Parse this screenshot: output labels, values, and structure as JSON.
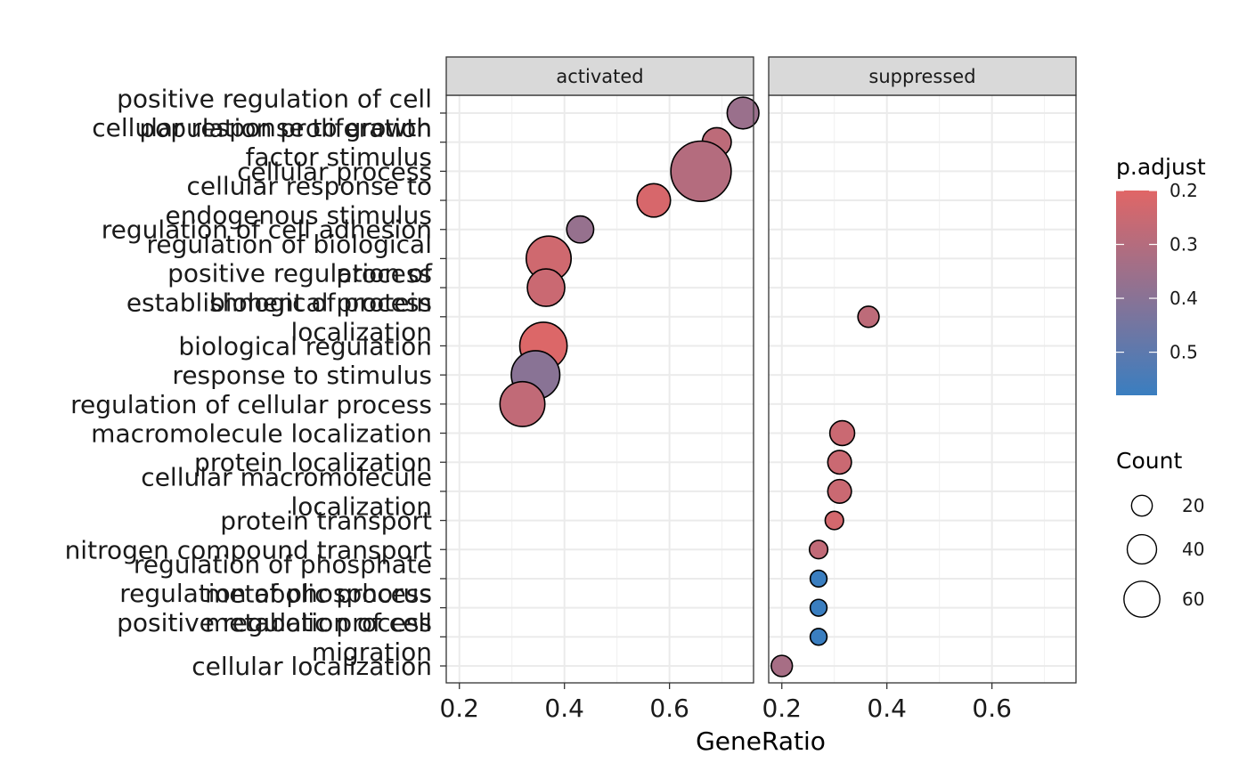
{
  "chart_data": {
    "type": "scatter",
    "xlabel": "GeneRatio",
    "ylabel": "",
    "xlim": [
      0.175,
      0.76
    ],
    "x_ticks": [
      0.2,
      0.4,
      0.6
    ],
    "x_tick_labels": [
      "0.2",
      "0.4",
      "0.6"
    ],
    "grid": true,
    "panels": [
      "activated",
      "suppressed"
    ],
    "categories": [
      "positive regulation of cell population proliferation",
      "cellular response to growth factor stimulus",
      "cellular process",
      "cellular response to endogenous stimulus",
      "regulation of cell adhesion",
      "regulation of biological process",
      "positive regulation of biological process",
      "establishment of protein localization",
      "biological regulation",
      "response to stimulus",
      "regulation of cellular process",
      "macromolecule localization",
      "protein localization",
      "cellular macromolecule localization",
      "protein transport",
      "nitrogen compound transport",
      "regulation of phosphate metabolic process",
      "regulation of phosphorus metabolic process",
      "positive regulation of cell migration",
      "cellular localization"
    ],
    "category_labels": [
      [
        "positive regulation of cell",
        "population proliferation"
      ],
      [
        "cellular response to growth",
        "factor stimulus"
      ],
      [
        "cellular process"
      ],
      [
        "cellular response to",
        "endogenous stimulus"
      ],
      [
        "regulation of cell adhesion"
      ],
      [
        "regulation of biological",
        "process"
      ],
      [
        "positive regulation of",
        "biological process"
      ],
      [
        "establishment of protein",
        "localization"
      ],
      [
        "biological regulation"
      ],
      [
        "response to stimulus"
      ],
      [
        "regulation of cellular process"
      ],
      [
        "macromolecule localization"
      ],
      [
        "protein localization"
      ],
      [
        "cellular macromolecule",
        "localization"
      ],
      [
        "protein transport"
      ],
      [
        "nitrogen compound transport"
      ],
      [
        "regulation of phosphate",
        "metabolic process"
      ],
      [
        "regulation of phosphorus",
        "metabolic process"
      ],
      [
        "positive regulation of cell",
        "migration"
      ],
      [
        "cellular localization"
      ]
    ],
    "points": [
      {
        "panel": "activated",
        "category": "positive regulation of cell population proliferation",
        "x": 0.74,
        "count": 18,
        "p_adjust": 0.36
      },
      {
        "panel": "activated",
        "category": "cellular response to growth factor stimulus",
        "x": 0.69,
        "count": 15,
        "p_adjust": 0.28
      },
      {
        "panel": "activated",
        "category": "cellular process",
        "x": 0.66,
        "count": 65,
        "p_adjust": 0.3
      },
      {
        "panel": "activated",
        "category": "cellular response to endogenous stimulus",
        "x": 0.57,
        "count": 20,
        "p_adjust": 0.22
      },
      {
        "panel": "activated",
        "category": "regulation of cell adhesion",
        "x": 0.43,
        "count": 13,
        "p_adjust": 0.37
      },
      {
        "panel": "activated",
        "category": "regulation of biological process",
        "x": 0.37,
        "count": 36,
        "p_adjust": 0.24
      },
      {
        "panel": "activated",
        "category": "positive regulation of biological process",
        "x": 0.365,
        "count": 25,
        "p_adjust": 0.25
      },
      {
        "panel": "activated",
        "category": "biological regulation",
        "x": 0.36,
        "count": 40,
        "p_adjust": 0.21
      },
      {
        "panel": "activated",
        "category": "response to stimulus",
        "x": 0.345,
        "count": 42,
        "p_adjust": 0.4
      },
      {
        "panel": "activated",
        "category": "regulation of cellular process",
        "x": 0.32,
        "count": 36,
        "p_adjust": 0.27
      },
      {
        "panel": "suppressed",
        "category": "establishment of protein localization",
        "x": 0.365,
        "count": 8,
        "p_adjust": 0.28
      },
      {
        "panel": "suppressed",
        "category": "macromolecule localization",
        "x": 0.315,
        "count": 11,
        "p_adjust": 0.25
      },
      {
        "panel": "suppressed",
        "category": "protein localization",
        "x": 0.31,
        "count": 10,
        "p_adjust": 0.25
      },
      {
        "panel": "suppressed",
        "category": "cellular macromolecule localization",
        "x": 0.31,
        "count": 10,
        "p_adjust": 0.25
      },
      {
        "panel": "suppressed",
        "category": "protein transport",
        "x": 0.3,
        "count": 6,
        "p_adjust": 0.23
      },
      {
        "panel": "suppressed",
        "category": "nitrogen compound transport",
        "x": 0.27,
        "count": 6,
        "p_adjust": 0.27
      },
      {
        "panel": "suppressed",
        "category": "regulation of phosphate metabolic process",
        "x": 0.27,
        "count": 5,
        "p_adjust": 0.58
      },
      {
        "panel": "suppressed",
        "category": "regulation of phosphorus metabolic process",
        "x": 0.27,
        "count": 5,
        "p_adjust": 0.58
      },
      {
        "panel": "suppressed",
        "category": "positive regulation of cell migration",
        "x": 0.27,
        "count": 5,
        "p_adjust": 0.58
      },
      {
        "panel": "suppressed",
        "category": "cellular localization",
        "x": 0.2,
        "count": 8,
        "p_adjust": 0.33
      }
    ],
    "color_legend": {
      "title": "p.adjust",
      "breaks": [
        0.2,
        0.3,
        0.4,
        0.5
      ],
      "labels": [
        "0.2",
        "0.3",
        "0.4",
        "0.5"
      ],
      "range": [
        0.2,
        0.58
      ],
      "low_color": "#E06666",
      "high_color": "#3A7EC0"
    },
    "size_legend": {
      "title": "Count",
      "breaks": [
        20,
        40,
        60
      ],
      "labels": [
        "20",
        "40",
        "60"
      ]
    },
    "legend_position": "right"
  }
}
